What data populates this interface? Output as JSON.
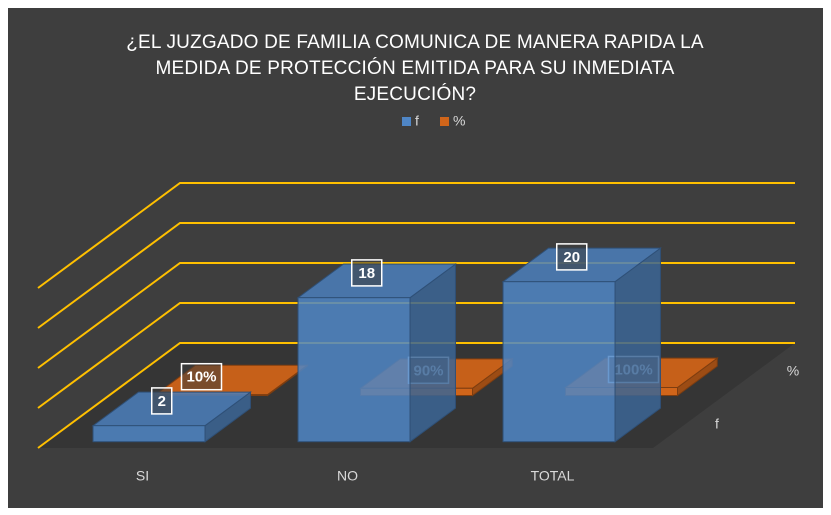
{
  "chart_data": {
    "type": "bar3d",
    "title": "¿EL JUZGADO DE FAMILIA COMUNICA DE MANERA RAPIDA LA MEDIDA DE PROTECCIÓN EMITIDA PARA SU INMEDIATA EJECUCIÓN?",
    "categories": [
      "SI",
      "NO",
      "TOTAL"
    ],
    "series": [
      {
        "name": "f",
        "color": "#4f86c6",
        "values": [
          2,
          18,
          20
        ]
      },
      {
        "name": "%",
        "color": "#d0651a",
        "values": [
          0.1,
          0.9,
          1
        ],
        "value_labels": [
          "10%",
          "90%",
          "100%"
        ]
      }
    ],
    "ylim": [
      0,
      20
    ],
    "yticks": [
      0,
      5,
      10,
      15,
      20
    ],
    "grid": true,
    "grid_color": "#ffc000",
    "legend": "top"
  }
}
